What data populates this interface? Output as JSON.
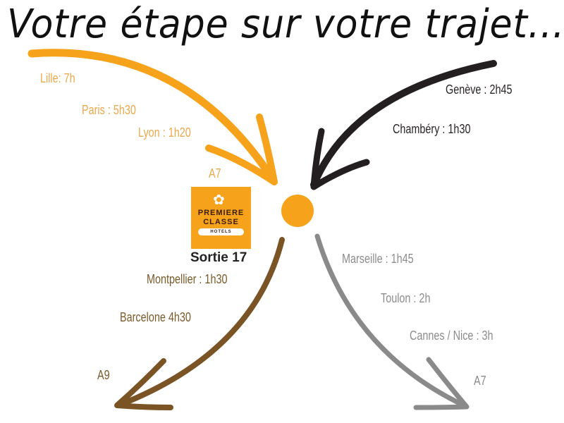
{
  "title": "Votre étape sur votre trajet...",
  "colors": {
    "north": "#f7a21b",
    "east": "#231f20",
    "southwest": "#7a5424",
    "southeast": "#8a8a8a",
    "hub": "#f7a21b"
  },
  "north_route": {
    "labels": [
      "Lille: 7h",
      "Paris : 5h30",
      "Lyon : 1h20"
    ],
    "road": "A7"
  },
  "east_route": {
    "labels": [
      "Genève : 2h45",
      "Chambéry : 1h30"
    ]
  },
  "southwest_route": {
    "labels": [
      "Montpellier : 1h30",
      "Barcelone 4h30"
    ],
    "road": "A9"
  },
  "southeast_route": {
    "labels": [
      "Marseille : 1h45",
      "Toulon : 2h",
      "Cannes / Nice : 3h"
    ],
    "road": "A7"
  },
  "logo": {
    "line1": "PREMIERE",
    "line2": "CLASSE",
    "line3": "HOTELS"
  },
  "exit": "Sortie 17"
}
